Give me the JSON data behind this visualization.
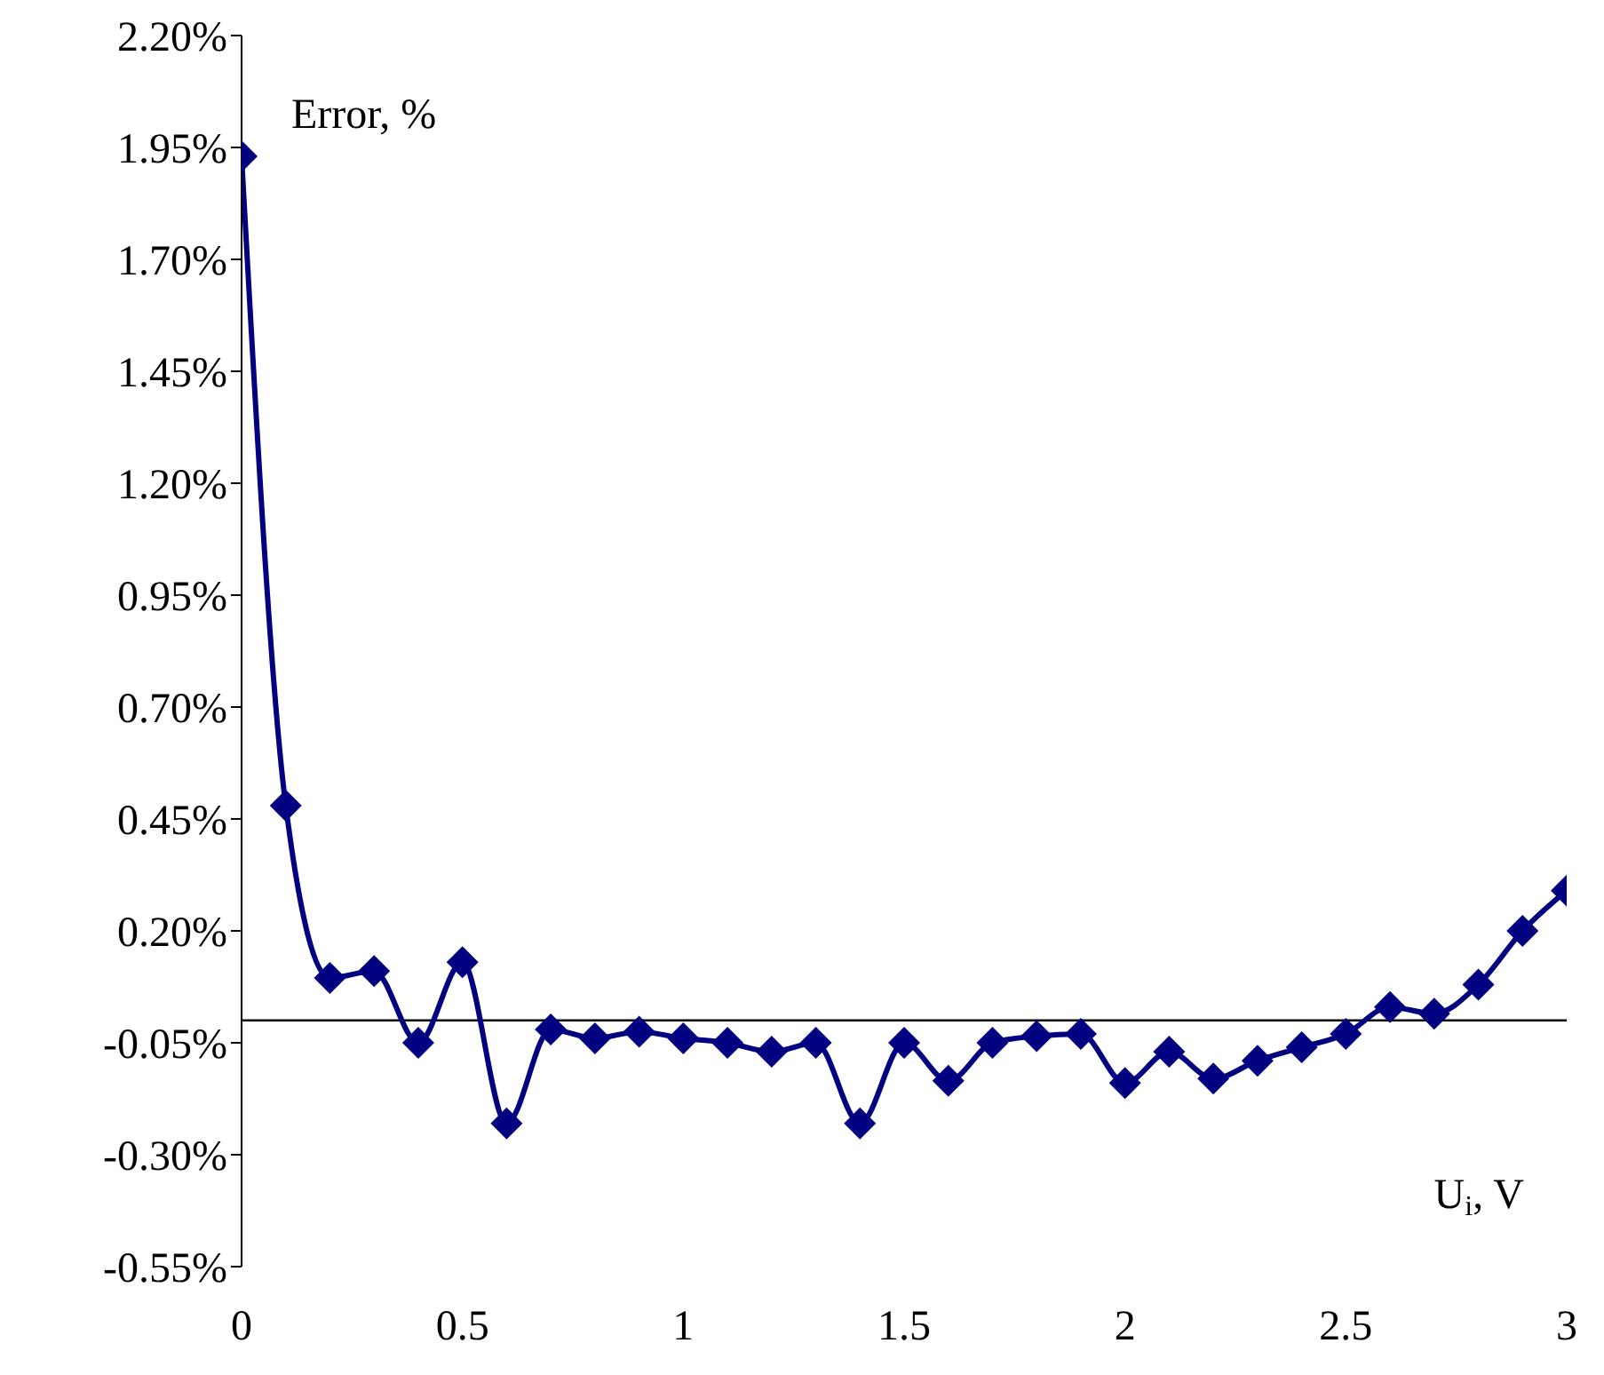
{
  "chart_data": {
    "type": "line",
    "x": [
      0,
      0.1,
      0.2,
      0.3,
      0.4,
      0.5,
      0.6,
      0.7,
      0.8,
      0.9,
      1,
      1.1,
      1.2,
      1.3,
      1.4,
      1.5,
      1.6,
      1.7,
      1.8,
      1.9,
      2,
      2.1,
      2.2,
      2.3,
      2.4,
      2.5,
      2.6,
      2.7,
      2.8,
      2.9,
      3
    ],
    "series": [
      {
        "color": "#000080",
        "values": [
          1.93,
          0.48,
          0.095,
          0.11,
          -0.05,
          0.13,
          -0.23,
          -0.02,
          -0.04,
          -0.025,
          -0.04,
          -0.05,
          -0.07,
          -0.05,
          -0.23,
          -0.05,
          -0.135,
          -0.05,
          -0.035,
          -0.03,
          -0.14,
          -0.07,
          -0.13,
          -0.09,
          -0.06,
          -0.03,
          0.03,
          0.015,
          0.08,
          0.2,
          0.29
        ]
      }
    ],
    "xlim": [
      0,
      3
    ],
    "xticks": [
      0,
      0.5,
      1,
      1.5,
      2,
      2.5,
      3
    ],
    "ylim": [
      -0.55,
      2.2
    ],
    "yticks": [
      {
        "value": -0.55,
        "label": "-0.55%"
      },
      {
        "value": -0.3,
        "label": "-0.30%"
      },
      {
        "value": -0.05,
        "label": "-0.05%"
      },
      {
        "value": 0.2,
        "label": "0.20%"
      },
      {
        "value": 0.45,
        "label": "0.45%"
      },
      {
        "value": 0.7,
        "label": "0.70%"
      },
      {
        "value": 0.95,
        "label": "0.95%"
      },
      {
        "value": 1.2,
        "label": "1.20%"
      },
      {
        "value": 1.45,
        "label": "1.45%"
      },
      {
        "value": 1.7,
        "label": "1.70%"
      },
      {
        "value": 1.95,
        "label": "1.95%"
      },
      {
        "value": 2.2,
        "label": "2.20%"
      }
    ],
    "ref_lines": [
      {
        "axis": "y",
        "value": 0,
        "color": "#000000"
      }
    ],
    "annotations": [
      "Error, %",
      "U$_{i}$, V"
    ],
    "marker": "diamond",
    "line_style": "solid",
    "grid": false,
    "legend": false
  }
}
